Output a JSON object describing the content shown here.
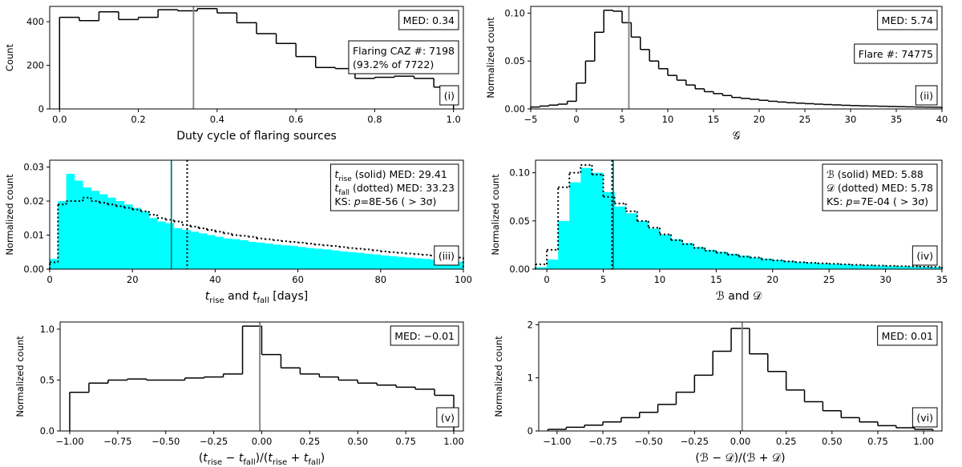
{
  "chart_data": [
    {
      "type": "histogram",
      "xlabel": "Duty cycle of flaring sources",
      "ylabel": "Count",
      "xlim": [
        -0.025,
        1.025
      ],
      "ylim": [
        0,
        470
      ],
      "xticks": [
        {
          "value": 0,
          "label": "0.0"
        },
        {
          "value": 0.2,
          "label": "0.2"
        },
        {
          "value": 0.4,
          "label": "0.4"
        },
        {
          "value": 0.6,
          "label": "0.6"
        },
        {
          "value": 0.8,
          "label": "0.8"
        },
        {
          "value": 1,
          "label": "1.0"
        }
      ],
      "yticks": [
        0,
        200,
        400
      ],
      "bins": [
        0,
        0.05,
        0.1,
        0.15,
        0.2,
        0.25,
        0.3,
        0.35,
        0.4,
        0.45,
        0.5,
        0.55,
        0.6,
        0.65,
        0.7,
        0.75,
        0.8,
        0.85,
        0.9,
        0.95,
        1
      ],
      "series": [
        {
          "color": "#000000",
          "fill": false,
          "linestyle": "solid",
          "values": [
            420,
            405,
            445,
            410,
            420,
            455,
            450,
            460,
            440,
            395,
            345,
            300,
            240,
            190,
            185,
            140,
            145,
            150,
            140,
            100
          ]
        }
      ],
      "medians": [
        {
          "value": 0.34,
          "color": "#808080",
          "linestyle": "solid"
        }
      ],
      "boxes": [
        {
          "lines": [
            "MED: 0.34"
          ]
        },
        {
          "lines": [
            "Flaring CAZ #: 7198",
            "(93.2% of 7722)"
          ]
        },
        {
          "lines": [
            "(i)"
          ]
        }
      ]
    },
    {
      "type": "histogram",
      "xlabel": "𝒢",
      "ylabel": "Normalized count",
      "xlim": [
        -5,
        40
      ],
      "ylim": [
        0,
        0.107
      ],
      "xticks": [
        {
          "value": -5,
          "label": "−5"
        },
        0,
        5,
        10,
        15,
        20,
        25,
        30,
        35,
        40
      ],
      "yticks": [
        {
          "value": 0,
          "label": "0.00"
        },
        {
          "value": 0.05,
          "label": "0.05"
        },
        {
          "value": 0.1,
          "label": "0.10"
        }
      ],
      "bins": [
        -5,
        -4,
        -3,
        -2,
        -1,
        0,
        1,
        2,
        3,
        4,
        5,
        6,
        7,
        8,
        9,
        10,
        11,
        12,
        13,
        14,
        15,
        16,
        17,
        18,
        19,
        20,
        21,
        22,
        23,
        24,
        25,
        26,
        27,
        28,
        29,
        30,
        31,
        32,
        33,
        34,
        35,
        36,
        37,
        38,
        39,
        40
      ],
      "series": [
        {
          "color": "#000000",
          "fill": false,
          "linestyle": "solid",
          "values": [
            0.002,
            0.003,
            0.004,
            0.005,
            0.008,
            0.027,
            0.05,
            0.08,
            0.103,
            0.102,
            0.09,
            0.075,
            0.062,
            0.05,
            0.042,
            0.035,
            0.03,
            0.025,
            0.021,
            0.018,
            0.016,
            0.014,
            0.012,
            0.011,
            0.01,
            0.009,
            0.008,
            0.0072,
            0.0065,
            0.006,
            0.0055,
            0.005,
            0.0046,
            0.0042,
            0.0038,
            0.0035,
            0.0032,
            0.003,
            0.0028,
            0.0026,
            0.0024,
            0.0022,
            0.002,
            0.0019,
            0.0018
          ]
        }
      ],
      "medians": [
        {
          "value": 5.74,
          "color": "#808080",
          "linestyle": "solid"
        }
      ],
      "boxes": [
        {
          "lines": [
            "MED: 5.74"
          ]
        },
        {
          "lines": [
            "Flare #: 74775"
          ]
        },
        {
          "lines": [
            "(ii)"
          ]
        }
      ]
    },
    {
      "type": "histogram",
      "xlabel": [
        {
          "text": "t",
          "italic": true
        },
        {
          "text": "rise",
          "sub": true
        },
        " and ",
        {
          "text": "t",
          "italic": true
        },
        {
          "text": "fall",
          "sub": true
        },
        " [days]"
      ],
      "ylabel": "Normalized count",
      "xlim": [
        0,
        100
      ],
      "ylim": [
        0,
        0.032
      ],
      "xticks": [
        0,
        20,
        40,
        60,
        80,
        100
      ],
      "yticks": [
        {
          "value": 0,
          "label": "0.00"
        },
        {
          "value": 0.01,
          "label": "0.01"
        },
        {
          "value": 0.02,
          "label": "0.02"
        },
        {
          "value": 0.03,
          "label": "0.03"
        }
      ],
      "bins": [
        0,
        2,
        4,
        6,
        8,
        10,
        12,
        14,
        16,
        18,
        20,
        22,
        24,
        26,
        28,
        30,
        32,
        34,
        36,
        38,
        40,
        42,
        44,
        46,
        48,
        50,
        52,
        54,
        56,
        58,
        60,
        62,
        64,
        66,
        68,
        70,
        72,
        74,
        76,
        78,
        80,
        82,
        84,
        86,
        88,
        90,
        92,
        94,
        96,
        98,
        100
      ],
      "series": [
        {
          "color": "#00ffff",
          "fill": true,
          "linestyle": "solid",
          "values": [
            0.003,
            0.02,
            0.028,
            0.026,
            0.024,
            0.023,
            0.022,
            0.021,
            0.02,
            0.019,
            0.018,
            0.017,
            0.015,
            0.014,
            0.0135,
            0.012,
            0.0115,
            0.011,
            0.0105,
            0.01,
            0.0095,
            0.009,
            0.0088,
            0.0085,
            0.008,
            0.0078,
            0.0075,
            0.0072,
            0.007,
            0.0068,
            0.0065,
            0.0062,
            0.006,
            0.0058,
            0.0055,
            0.0052,
            0.005,
            0.0048,
            0.0045,
            0.0043,
            0.004,
            0.0038,
            0.0036,
            0.0034,
            0.0032,
            0.003,
            0.0028,
            0.0026,
            0.0024,
            0.0022
          ]
        },
        {
          "color": "#000000",
          "fill": false,
          "linestyle": "dotted",
          "values": [
            0.002,
            0.019,
            0.02,
            0.02,
            0.021,
            0.02,
            0.0195,
            0.019,
            0.0185,
            0.018,
            0.0175,
            0.017,
            0.016,
            0.015,
            0.0145,
            0.014,
            0.013,
            0.0125,
            0.012,
            0.0115,
            0.011,
            0.0105,
            0.01,
            0.0098,
            0.0095,
            0.009,
            0.0088,
            0.0085,
            0.0082,
            0.008,
            0.0078,
            0.0075,
            0.0072,
            0.007,
            0.0068,
            0.0065,
            0.0062,
            0.006,
            0.0058,
            0.0055,
            0.0052,
            0.005,
            0.0048,
            0.0046,
            0.0044,
            0.0042,
            0.004,
            0.0038,
            0.0036,
            0.0034
          ]
        }
      ],
      "medians": [
        {
          "value": 29.41,
          "color": "#008080",
          "linestyle": "solid"
        },
        {
          "value": 33.23,
          "color": "#000000",
          "linestyle": "dotted"
        }
      ],
      "boxes": [
        {
          "lines": [
            [
              {
                "text": "t",
                "italic": true
              },
              {
                "text": "rise",
                "sub": true
              },
              " (solid) MED: 29.41"
            ],
            [
              {
                "text": "t",
                "italic": true
              },
              {
                "text": "fall",
                "sub": true
              },
              " (dotted) MED: 33.23"
            ],
            [
              "KS: ",
              {
                "text": "p",
                "italic": true
              },
              "=8E-56 ( > 3σ)"
            ]
          ]
        },
        {
          "lines": [
            "(iii)"
          ]
        }
      ]
    },
    {
      "type": "histogram",
      "xlabel": "ℬ and 𝒟",
      "ylabel": "Normalized count",
      "xlim": [
        -1,
        35
      ],
      "ylim": [
        0,
        0.113
      ],
      "xticks": [
        0,
        5,
        10,
        15,
        20,
        25,
        30,
        35
      ],
      "yticks": [
        {
          "value": 0,
          "label": "0.00"
        },
        {
          "value": 0.05,
          "label": "0.05"
        },
        {
          "value": 0.1,
          "label": "0.10"
        }
      ],
      "bins": [
        -1,
        0,
        1,
        2,
        3,
        4,
        5,
        6,
        7,
        8,
        9,
        10,
        11,
        12,
        13,
        14,
        15,
        16,
        17,
        18,
        19,
        20,
        21,
        22,
        23,
        24,
        25,
        26,
        27,
        28,
        29,
        30,
        31,
        32,
        33,
        34,
        35
      ],
      "series": [
        {
          "color": "#00ffff",
          "fill": true,
          "linestyle": "solid",
          "values": [
            0.002,
            0.01,
            0.05,
            0.09,
            0.105,
            0.1,
            0.08,
            0.065,
            0.058,
            0.05,
            0.042,
            0.036,
            0.031,
            0.027,
            0.023,
            0.02,
            0.018,
            0.016,
            0.014,
            0.012,
            0.011,
            0.0095,
            0.0085,
            0.0075,
            0.0068,
            0.006,
            0.0055,
            0.005,
            0.0045,
            0.004,
            0.0036,
            0.0033,
            0.003,
            0.0027,
            0.0025,
            0.0022
          ]
        },
        {
          "color": "#000000",
          "fill": false,
          "linestyle": "dotted",
          "values": [
            0.005,
            0.02,
            0.085,
            0.1,
            0.108,
            0.098,
            0.075,
            0.068,
            0.06,
            0.05,
            0.043,
            0.036,
            0.03,
            0.026,
            0.022,
            0.019,
            0.017,
            0.015,
            0.013,
            0.012,
            0.01,
            0.009,
            0.008,
            0.0072,
            0.0065,
            0.006,
            0.0055,
            0.005,
            0.0045,
            0.004,
            0.0037,
            0.0034,
            0.003,
            0.0028,
            0.0025,
            0.0022
          ]
        }
      ],
      "medians": [
        {
          "value": 5.88,
          "color": "#008080",
          "linestyle": "solid"
        },
        {
          "value": 5.78,
          "color": "#000000",
          "linestyle": "dotted"
        }
      ],
      "boxes": [
        {
          "lines": [
            "ℬ (solid) MED: 5.88",
            "𝒟 (dotted) MED: 5.78",
            [
              "KS: ",
              {
                "text": "p",
                "italic": true
              },
              "=7E-04 ( > 3σ)"
            ]
          ]
        },
        {
          "lines": [
            "(iv)"
          ]
        }
      ]
    },
    {
      "type": "histogram",
      "xlabel": [
        "(",
        {
          "text": "t",
          "italic": true
        },
        {
          "text": "rise",
          "sub": true
        },
        " − ",
        {
          "text": "t",
          "italic": true
        },
        {
          "text": "fall",
          "sub": true
        },
        ")/(",
        {
          "text": "t",
          "italic": true
        },
        {
          "text": "rise",
          "sub": true
        },
        " + ",
        {
          "text": "t",
          "italic": true
        },
        {
          "text": "fall",
          "sub": true
        },
        ")"
      ],
      "ylabel": "Normalized count",
      "xlim": [
        -1.05,
        1.05
      ],
      "ylim": [
        0,
        1.07
      ],
      "xticks": [
        {
          "value": -1,
          "label": "−1.00"
        },
        {
          "value": -0.75,
          "label": "−0.75"
        },
        {
          "value": -0.5,
          "label": "−0.50"
        },
        {
          "value": -0.25,
          "label": "−0.25"
        },
        {
          "value": 0,
          "label": "0.00"
        },
        {
          "value": 0.25,
          "label": "0.25"
        },
        {
          "value": 0.5,
          "label": "0.50"
        },
        {
          "value": 0.75,
          "label": "0.75"
        },
        {
          "value": 1,
          "label": "1.00"
        }
      ],
      "yticks": [
        {
          "value": 0,
          "label": "0.0"
        },
        {
          "value": 0.5,
          "label": "0.5"
        },
        {
          "value": 1,
          "label": "1.0"
        }
      ],
      "bins": [
        -1,
        -0.9,
        -0.8,
        -0.7,
        -0.6,
        -0.5,
        -0.4,
        -0.3,
        -0.2,
        -0.1,
        0,
        0.1,
        0.2,
        0.3,
        0.4,
        0.5,
        0.6,
        0.7,
        0.8,
        0.9,
        1
      ],
      "series": [
        {
          "color": "#000000",
          "fill": false,
          "linestyle": "solid",
          "values": [
            0.38,
            0.47,
            0.5,
            0.51,
            0.5,
            0.5,
            0.52,
            0.53,
            0.56,
            1.03,
            0.75,
            0.62,
            0.56,
            0.53,
            0.5,
            0.47,
            0.45,
            0.43,
            0.41,
            0.35
          ]
        }
      ],
      "medians": [
        {
          "value": -0.01,
          "color": "#808080",
          "linestyle": "solid"
        }
      ],
      "boxes": [
        {
          "lines": [
            "MED: −0.01"
          ]
        },
        {
          "lines": [
            "(v)"
          ]
        }
      ]
    },
    {
      "type": "histogram",
      "xlabel": "(ℬ − 𝒟)/(ℬ + 𝒟)",
      "ylabel": "Normalized count",
      "xlim": [
        -1.1,
        1.1
      ],
      "ylim": [
        0,
        2.05
      ],
      "xticks": [
        {
          "value": -1,
          "label": "−1.00"
        },
        {
          "value": -0.75,
          "label": "−0.75"
        },
        {
          "value": -0.5,
          "label": "−0.50"
        },
        {
          "value": -0.25,
          "label": "−0.25"
        },
        {
          "value": 0,
          "label": "0.00"
        },
        {
          "value": 0.25,
          "label": "0.25"
        },
        {
          "value": 0.5,
          "label": "0.50"
        },
        {
          "value": 0.75,
          "label": "0.75"
        },
        {
          "value": 1,
          "label": "1.00"
        }
      ],
      "yticks": [
        0,
        1,
        2
      ],
      "bins": [
        -1.05,
        -0.95,
        -0.85,
        -0.75,
        -0.65,
        -0.55,
        -0.45,
        -0.35,
        -0.25,
        -0.15,
        -0.05,
        0.05,
        0.15,
        0.25,
        0.35,
        0.45,
        0.55,
        0.65,
        0.75,
        0.85,
        0.95,
        1.05
      ],
      "series": [
        {
          "color": "#000000",
          "fill": false,
          "linestyle": "solid",
          "values": [
            0.03,
            0.07,
            0.11,
            0.17,
            0.25,
            0.35,
            0.5,
            0.73,
            1.05,
            1.5,
            1.93,
            1.45,
            1.12,
            0.77,
            0.55,
            0.38,
            0.25,
            0.17,
            0.1,
            0.06,
            0.03
          ]
        }
      ],
      "medians": [
        {
          "value": 0.01,
          "color": "#808080",
          "linestyle": "solid"
        }
      ],
      "boxes": [
        {
          "lines": [
            "MED: 0.01"
          ]
        },
        {
          "lines": [
            "(vi)"
          ]
        }
      ]
    }
  ]
}
